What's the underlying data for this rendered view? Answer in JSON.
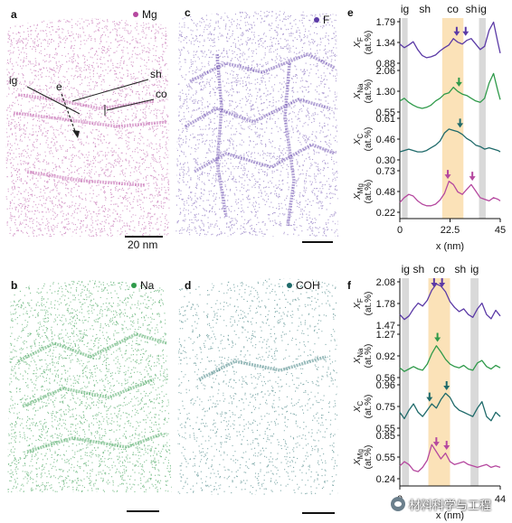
{
  "panels": {
    "a": {
      "letter": "a",
      "element": "Mg",
      "color": "#b5489f",
      "scale_bar": "20 nm",
      "annotations": {
        "ig": "ig",
        "sh": "sh",
        "co": "co",
        "e": "e"
      }
    },
    "b": {
      "letter": "b",
      "element": "Na",
      "color": "#2f9a4a"
    },
    "c": {
      "letter": "c",
      "element": "F",
      "color": "#5b3aa6"
    },
    "d": {
      "letter": "d",
      "element": "COH",
      "color": "#1f6a6a"
    }
  },
  "colors": {
    "zone_gray": "#d9d9d9",
    "zone_orange": "#fbe2b8"
  },
  "chart_data": [
    {
      "type": "line",
      "panel": "e",
      "xlabel": "x (nm)",
      "xlim": [
        0,
        45
      ],
      "xticks": [
        "0",
        "22.5",
        "45"
      ],
      "zones": [
        {
          "label": "ig",
          "x0": 1.0,
          "x1": 3.5,
          "kind": "gray"
        },
        {
          "label": "sh",
          "x0": 3.5,
          "x1": 19.0,
          "kind": "white"
        },
        {
          "label": "co",
          "x0": 19.0,
          "x1": 28.5,
          "kind": "orange"
        },
        {
          "label": "sh",
          "x0": 28.5,
          "x1": 35.5,
          "kind": "white"
        },
        {
          "label": "ig",
          "x0": 35.5,
          "x1": 38.5,
          "kind": "gray"
        }
      ],
      "series": [
        {
          "name": "F",
          "ylabel_sym": "X",
          "ylabel_sub": "F",
          "ylabel_unit": "(at.%)",
          "color": "#5b3aa6",
          "yticks": [
            "1.79",
            "1.34",
            "0.88"
          ],
          "ylim": [
            0.88,
            1.79
          ],
          "x": [
            0,
            2,
            4,
            6,
            8,
            10,
            12,
            14,
            16,
            18,
            20,
            22,
            24,
            26,
            28,
            30,
            32,
            34,
            36,
            38,
            40,
            42,
            44,
            45
          ],
          "y": [
            1.3,
            1.22,
            1.28,
            1.35,
            1.18,
            1.05,
            1.0,
            1.02,
            1.06,
            1.15,
            1.22,
            1.28,
            1.42,
            1.34,
            1.3,
            1.38,
            1.42,
            1.3,
            1.18,
            1.25,
            1.6,
            1.78,
            1.32,
            1.1
          ],
          "markers": [
            25.5,
            29.5
          ]
        },
        {
          "name": "Na",
          "ylabel_sym": "X",
          "ylabel_sub": "Na",
          "ylabel_unit": "(at.%)",
          "color": "#2f9a4a",
          "yticks": [
            "2.06",
            "1.30",
            "0.55"
          ],
          "ylim": [
            0.55,
            2.06
          ],
          "x": [
            0,
            2,
            4,
            6,
            8,
            10,
            12,
            14,
            16,
            18,
            20,
            22,
            24,
            26,
            28,
            30,
            32,
            34,
            36,
            38,
            40,
            42,
            44,
            45
          ],
          "y": [
            0.95,
            1.05,
            0.9,
            0.8,
            0.72,
            0.68,
            0.72,
            0.8,
            0.95,
            1.05,
            1.2,
            1.25,
            1.45,
            1.3,
            1.2,
            1.15,
            1.05,
            0.95,
            0.9,
            1.05,
            1.6,
            1.95,
            1.3,
            1.0
          ],
          "markers": [
            26.5
          ]
        },
        {
          "name": "C",
          "ylabel_sym": "X",
          "ylabel_sub": "C",
          "ylabel_unit": "(at.%)",
          "color": "#1f6a6a",
          "yticks": [
            "0.61",
            "0.46",
            "0.30"
          ],
          "ylim": [
            0.3,
            0.61
          ],
          "x": [
            0,
            2,
            4,
            6,
            8,
            10,
            12,
            14,
            16,
            18,
            20,
            22,
            24,
            26,
            28,
            30,
            32,
            34,
            36,
            38,
            40,
            42,
            44,
            45
          ],
          "y": [
            0.36,
            0.37,
            0.38,
            0.37,
            0.36,
            0.36,
            0.37,
            0.39,
            0.41,
            0.44,
            0.5,
            0.53,
            0.52,
            0.51,
            0.49,
            0.46,
            0.44,
            0.41,
            0.4,
            0.38,
            0.39,
            0.38,
            0.37,
            0.36
          ],
          "markers": [
            27
          ]
        },
        {
          "name": "Mg",
          "ylabel_sym": "X",
          "ylabel_sub": "Mg",
          "ylabel_unit": "(at.%)",
          "color": "#b5489f",
          "yticks": [
            "0.73",
            "0.48",
            "0.22"
          ],
          "ylim": [
            0.22,
            0.73
          ],
          "x": [
            0,
            2,
            4,
            6,
            8,
            10,
            12,
            14,
            16,
            18,
            20,
            22,
            24,
            26,
            28,
            30,
            32,
            34,
            36,
            38,
            40,
            42,
            44,
            45
          ],
          "y": [
            0.34,
            0.4,
            0.44,
            0.42,
            0.36,
            0.32,
            0.3,
            0.3,
            0.32,
            0.37,
            0.45,
            0.6,
            0.56,
            0.47,
            0.44,
            0.5,
            0.56,
            0.48,
            0.4,
            0.38,
            0.36,
            0.4,
            0.38,
            0.36
          ],
          "markers": [
            21.5,
            32.5
          ]
        }
      ]
    },
    {
      "type": "line",
      "panel": "f",
      "xlabel": "x (nm)",
      "xlim": [
        0,
        44
      ],
      "xticks": [
        "0",
        "44"
      ],
      "zones": [
        {
          "label": "ig",
          "x0": 1.0,
          "x1": 4.0,
          "kind": "gray"
        },
        {
          "label": "sh",
          "x0": 4.0,
          "x1": 12.5,
          "kind": "white"
        },
        {
          "label": "co",
          "x0": 12.5,
          "x1": 22.0,
          "kind": "orange"
        },
        {
          "label": "sh",
          "x0": 22.0,
          "x1": 31.0,
          "kind": "white"
        },
        {
          "label": "ig",
          "x0": 31.0,
          "x1": 34.5,
          "kind": "gray"
        }
      ],
      "series": [
        {
          "name": "F",
          "ylabel_sym": "X",
          "ylabel_sub": "F",
          "ylabel_unit": "(at.%)",
          "color": "#5b3aa6",
          "yticks": [
            "2.08",
            "1.78",
            "1.47"
          ],
          "ylim": [
            1.47,
            2.08
          ],
          "x": [
            0,
            2,
            4,
            6,
            8,
            10,
            12,
            14,
            16,
            18,
            20,
            22,
            24,
            26,
            28,
            30,
            32,
            34,
            36,
            38,
            40,
            42,
            44
          ],
          "y": [
            1.62,
            1.55,
            1.6,
            1.7,
            1.78,
            1.74,
            1.82,
            1.96,
            2.05,
            2.02,
            1.94,
            1.8,
            1.72,
            1.66,
            1.7,
            1.62,
            1.58,
            1.7,
            1.78,
            1.62,
            1.56,
            1.68,
            1.6
          ],
          "markers": [
            15,
            18.5
          ]
        },
        {
          "name": "Na",
          "ylabel_sym": "X",
          "ylabel_sub": "Na",
          "ylabel_unit": "(at.%)",
          "color": "#2f9a4a",
          "yticks": [
            "1.27",
            "0.92",
            "0.56"
          ],
          "ylim": [
            0.56,
            1.27
          ],
          "x": [
            0,
            2,
            4,
            6,
            8,
            10,
            12,
            14,
            16,
            18,
            20,
            22,
            24,
            26,
            28,
            30,
            32,
            34,
            36,
            38,
            40,
            42,
            44
          ],
          "y": [
            0.72,
            0.66,
            0.7,
            0.74,
            0.7,
            0.68,
            0.78,
            0.95,
            1.08,
            0.98,
            0.86,
            0.78,
            0.74,
            0.72,
            0.76,
            0.7,
            0.68,
            0.8,
            0.84,
            0.74,
            0.7,
            0.76,
            0.72
          ],
          "markers": [
            16.5
          ]
        },
        {
          "name": "C",
          "ylabel_sym": "X",
          "ylabel_sub": "C",
          "ylabel_unit": "(at.%)",
          "color": "#1f6a6a",
          "yticks": [
            "0.96",
            "0.75",
            "0.55"
          ],
          "ylim": [
            0.55,
            0.96
          ],
          "x": [
            0,
            2,
            4,
            6,
            8,
            10,
            12,
            14,
            16,
            18,
            20,
            22,
            24,
            26,
            28,
            30,
            32,
            34,
            36,
            38,
            40,
            42,
            44
          ],
          "y": [
            0.7,
            0.64,
            0.72,
            0.78,
            0.7,
            0.66,
            0.72,
            0.78,
            0.74,
            0.82,
            0.88,
            0.84,
            0.76,
            0.72,
            0.7,
            0.68,
            0.66,
            0.74,
            0.8,
            0.66,
            0.62,
            0.7,
            0.66
          ],
          "markers": [
            13,
            20.5
          ]
        },
        {
          "name": "Mg",
          "ylabel_sym": "X",
          "ylabel_sub": "Mg",
          "ylabel_unit": "(at.%)",
          "color": "#b5489f",
          "yticks": [
            "0.85",
            "0.55",
            "0.24"
          ],
          "ylim": [
            0.24,
            0.85
          ],
          "x": [
            0,
            2,
            4,
            6,
            8,
            10,
            12,
            14,
            16,
            18,
            20,
            22,
            24,
            26,
            28,
            30,
            32,
            34,
            36,
            38,
            40,
            42,
            44
          ],
          "y": [
            0.42,
            0.48,
            0.44,
            0.36,
            0.34,
            0.4,
            0.5,
            0.72,
            0.62,
            0.52,
            0.6,
            0.48,
            0.44,
            0.46,
            0.48,
            0.44,
            0.42,
            0.4,
            0.42,
            0.44,
            0.4,
            0.42,
            0.4
          ],
          "markers": [
            16,
            20.5
          ]
        }
      ]
    }
  ],
  "watermark": {
    "text": "材料科学与工程"
  }
}
